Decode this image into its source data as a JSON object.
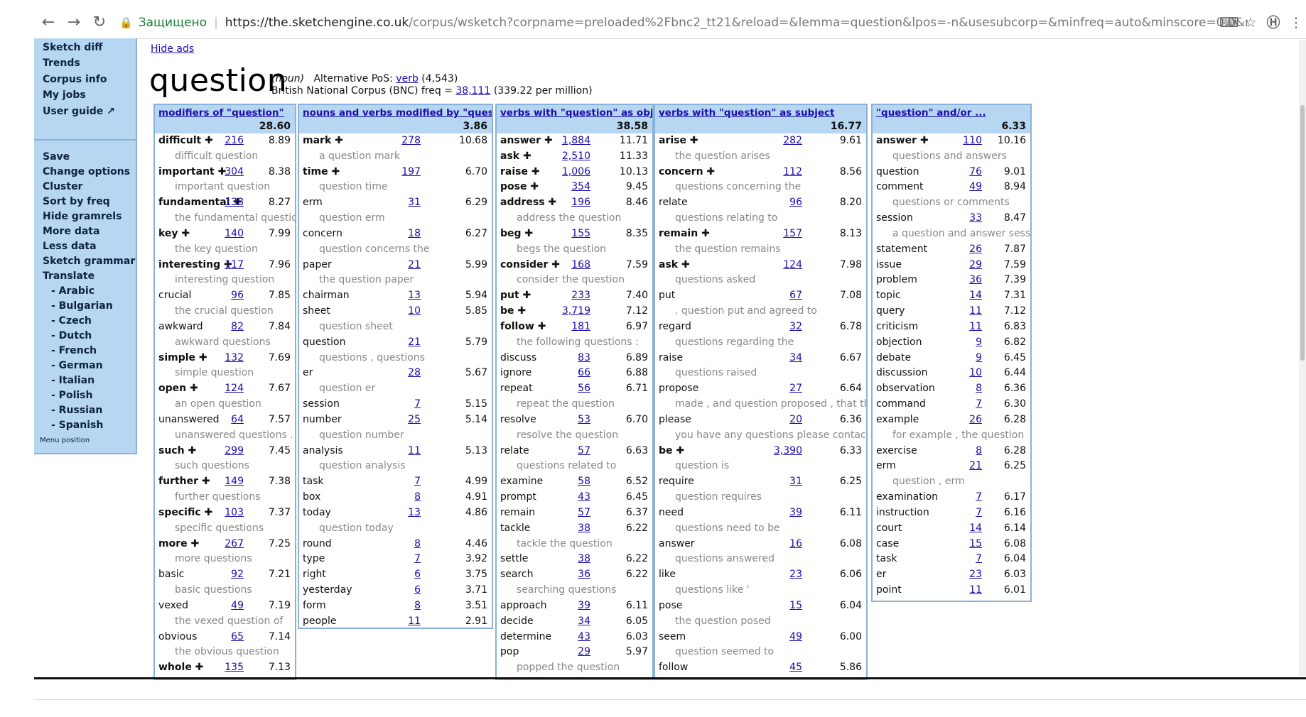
{
  "browser": {
    "secure_label": "Защищено",
    "url_host": "https://the.sketchengine.co.uk",
    "url_rest": "/corpus/wsketch?corpname=preloaded%2Fbnc2_tt21&reload=&lemma=question&lpos=-n&usesubcorp=&minfreq=auto&minscore=0.0&maxitems=25&sort_ws_...",
    "back_glyph": "←",
    "forward_glyph": "→",
    "reload_glyph": "↻",
    "lock_glyph": "🔒",
    "translate_glyph": "⌨",
    "star_glyph": "☆",
    "ext_glyph": "Ⓗ",
    "menu_glyph": "⋮"
  },
  "sidebar": {
    "items": [
      {
        "label": "Sketch diff"
      },
      {
        "label": "Trends"
      },
      {
        "label": "Corpus info"
      },
      {
        "label": "My jobs"
      },
      {
        "label": "User guide ↗"
      },
      {
        "label": "Save"
      },
      {
        "label": "Change options"
      },
      {
        "label": "Cluster"
      },
      {
        "label": "Sort by freq"
      },
      {
        "label": "Hide gramrels"
      },
      {
        "label": "More data"
      },
      {
        "label": "Less data"
      },
      {
        "label": "Sketch grammar"
      },
      {
        "label": "Translate"
      },
      {
        "label": "- Arabic"
      },
      {
        "label": "- Bulgarian"
      },
      {
        "label": "- Czech"
      },
      {
        "label": "- Dutch"
      },
      {
        "label": "- French"
      },
      {
        "label": "- German"
      },
      {
        "label": "- Italian"
      },
      {
        "label": "- Polish"
      },
      {
        "label": "- Russian"
      },
      {
        "label": "- Spanish"
      }
    ],
    "menu_position": "Menu position"
  },
  "main": {
    "hide_ads": "Hide ads",
    "headword": "question",
    "pos": "(noun)",
    "alt_pos_label": "Alternative PoS:",
    "alt_pos_link": "verb",
    "alt_pos_count": "(4,543)",
    "corpus_label": "British National Corpus (BNC) freq =",
    "corpus_freq": "38,111",
    "corpus_per_million": "(339.22 per million)"
  },
  "gramrels": [
    {
      "title": "modifiers of \"question\"",
      "score": "28.60",
      "rows": [
        {
          "w": "difficult",
          "plus": true,
          "f": "216",
          "s": "8.89"
        },
        {
          "ex": "difficult question"
        },
        {
          "w": "important",
          "plus": true,
          "f": "304",
          "s": "8.38"
        },
        {
          "ex": "important question"
        },
        {
          "w": "fundamental",
          "plus": true,
          "f": "138",
          "s": "8.27"
        },
        {
          "ex": "the fundamental question"
        },
        {
          "w": "key",
          "plus": true,
          "f": "140",
          "s": "7.99"
        },
        {
          "ex": "the key question"
        },
        {
          "w": "interesting",
          "plus": true,
          "f": "117",
          "s": "7.96"
        },
        {
          "ex": "interesting question"
        },
        {
          "w": "crucial",
          "f": "96",
          "s": "7.85"
        },
        {
          "ex": "the crucial question"
        },
        {
          "w": "awkward",
          "f": "82",
          "s": "7.84"
        },
        {
          "ex": "awkward questions"
        },
        {
          "w": "simple",
          "plus": true,
          "f": "132",
          "s": "7.69"
        },
        {
          "ex": "simple question"
        },
        {
          "w": "open",
          "plus": true,
          "f": "124",
          "s": "7.67"
        },
        {
          "ex": "an open question"
        },
        {
          "w": "unanswered",
          "f": "64",
          "s": "7.57"
        },
        {
          "ex": "unanswered questions ."
        },
        {
          "w": "such",
          "plus": true,
          "f": "299",
          "s": "7.45"
        },
        {
          "ex": "such questions"
        },
        {
          "w": "further",
          "plus": true,
          "f": "149",
          "s": "7.38"
        },
        {
          "ex": "further questions"
        },
        {
          "w": "specific",
          "plus": true,
          "f": "103",
          "s": "7.37"
        },
        {
          "ex": "specific questions"
        },
        {
          "w": "more",
          "plus": true,
          "f": "267",
          "s": "7.25"
        },
        {
          "ex": "more questions"
        },
        {
          "w": "basic",
          "f": "92",
          "s": "7.21"
        },
        {
          "ex": "basic questions"
        },
        {
          "w": "vexed",
          "f": "49",
          "s": "7.19"
        },
        {
          "ex": "the vexed question of"
        },
        {
          "w": "obvious",
          "f": "65",
          "s": "7.14"
        },
        {
          "ex": "the obvious question"
        },
        {
          "w": "whole",
          "plus": true,
          "f": "135",
          "s": "7.13"
        }
      ]
    },
    {
      "title": "nouns and verbs modified by \"question\"",
      "score": "3.86",
      "rows": [
        {
          "w": "mark",
          "plus": true,
          "f": "278",
          "s": "10.68"
        },
        {
          "ex": "a question mark"
        },
        {
          "w": "time",
          "plus": true,
          "f": "197",
          "s": "6.70"
        },
        {
          "ex": "question time"
        },
        {
          "w": "erm",
          "f": "31",
          "s": "6.29"
        },
        {
          "ex": "question erm"
        },
        {
          "w": "concern",
          "f": "18",
          "s": "6.27"
        },
        {
          "ex": "question concerns the"
        },
        {
          "w": "paper",
          "f": "21",
          "s": "5.99"
        },
        {
          "ex": "the question paper"
        },
        {
          "w": "chairman",
          "f": "13",
          "s": "5.94"
        },
        {
          "w": "sheet",
          "f": "10",
          "s": "5.85"
        },
        {
          "ex": "question sheet"
        },
        {
          "w": "question",
          "f": "21",
          "s": "5.79"
        },
        {
          "ex": "questions , questions"
        },
        {
          "w": "er",
          "f": "28",
          "s": "5.67"
        },
        {
          "ex": "question er"
        },
        {
          "w": "session",
          "f": "7",
          "s": "5.15"
        },
        {
          "w": "number",
          "f": "25",
          "s": "5.14"
        },
        {
          "ex": "question number"
        },
        {
          "w": "analysis",
          "f": "11",
          "s": "5.13"
        },
        {
          "ex": "question analysis"
        },
        {
          "w": "task",
          "f": "7",
          "s": "4.99"
        },
        {
          "w": "box",
          "f": "8",
          "s": "4.91"
        },
        {
          "w": "today",
          "f": "13",
          "s": "4.86"
        },
        {
          "ex": "question today"
        },
        {
          "w": "round",
          "f": "8",
          "s": "4.46"
        },
        {
          "w": "type",
          "f": "7",
          "s": "3.92"
        },
        {
          "w": "right",
          "f": "6",
          "s": "3.75"
        },
        {
          "w": "yesterday",
          "f": "6",
          "s": "3.71"
        },
        {
          "w": "form",
          "f": "8",
          "s": "3.51"
        },
        {
          "w": "people",
          "f": "11",
          "s": "2.91"
        }
      ]
    },
    {
      "title": "verbs with \"question\" as object",
      "score": "38.58",
      "rows": [
        {
          "w": "answer",
          "plus": true,
          "f": "1,884",
          "s": "11.71"
        },
        {
          "w": "ask",
          "plus": true,
          "f": "2,510",
          "s": "11.33"
        },
        {
          "w": "raise",
          "plus": true,
          "f": "1,006",
          "s": "10.13"
        },
        {
          "w": "pose",
          "plus": true,
          "f": "354",
          "s": "9.45"
        },
        {
          "w": "address",
          "plus": true,
          "f": "196",
          "s": "8.46"
        },
        {
          "ex": "address the question"
        },
        {
          "w": "beg",
          "plus": true,
          "f": "155",
          "s": "8.35"
        },
        {
          "ex": "begs the question"
        },
        {
          "w": "consider",
          "plus": true,
          "f": "168",
          "s": "7.59"
        },
        {
          "ex": "consider the question"
        },
        {
          "w": "put",
          "plus": true,
          "f": "233",
          "s": "7.40"
        },
        {
          "w": "be",
          "plus": true,
          "f": "3,719",
          "s": "7.12"
        },
        {
          "w": "follow",
          "plus": true,
          "f": "181",
          "s": "6.97"
        },
        {
          "ex": "the following questions :"
        },
        {
          "w": "discuss",
          "f": "83",
          "s": "6.89"
        },
        {
          "w": "ignore",
          "f": "66",
          "s": "6.88"
        },
        {
          "w": "repeat",
          "f": "56",
          "s": "6.71"
        },
        {
          "ex": "repeat the question"
        },
        {
          "w": "resolve",
          "f": "53",
          "s": "6.70"
        },
        {
          "ex": "resolve the question"
        },
        {
          "w": "relate",
          "f": "57",
          "s": "6.63"
        },
        {
          "ex": "questions related to"
        },
        {
          "w": "examine",
          "f": "58",
          "s": "6.52"
        },
        {
          "w": "prompt",
          "f": "43",
          "s": "6.45"
        },
        {
          "w": "remain",
          "f": "57",
          "s": "6.37"
        },
        {
          "w": "tackle",
          "f": "38",
          "s": "6.22"
        },
        {
          "ex": "tackle the question"
        },
        {
          "w": "settle",
          "f": "38",
          "s": "6.22"
        },
        {
          "w": "search",
          "f": "36",
          "s": "6.22"
        },
        {
          "ex": "searching questions"
        },
        {
          "w": "approach",
          "f": "39",
          "s": "6.11"
        },
        {
          "w": "decide",
          "f": "34",
          "s": "6.05"
        },
        {
          "w": "determine",
          "f": "43",
          "s": "6.03"
        },
        {
          "w": "pop",
          "f": "29",
          "s": "5.97"
        },
        {
          "ex": "popped the question"
        }
      ]
    },
    {
      "title": "verbs with \"question\" as subject",
      "score": "16.77",
      "rows": [
        {
          "w": "arise",
          "plus": true,
          "f": "282",
          "s": "9.61"
        },
        {
          "ex": "the question arises"
        },
        {
          "w": "concern",
          "plus": true,
          "f": "112",
          "s": "8.56"
        },
        {
          "ex": "questions concerning the"
        },
        {
          "w": "relate",
          "f": "96",
          "s": "8.20"
        },
        {
          "ex": "questions relating to"
        },
        {
          "w": "remain",
          "plus": true,
          "f": "157",
          "s": "8.13"
        },
        {
          "ex": "the question remains"
        },
        {
          "w": "ask",
          "plus": true,
          "f": "124",
          "s": "7.98"
        },
        {
          "ex": "questions asked"
        },
        {
          "w": "put",
          "f": "67",
          "s": "7.08"
        },
        {
          "ex": ". question put and agreed to"
        },
        {
          "w": "regard",
          "f": "32",
          "s": "6.78"
        },
        {
          "ex": "questions regarding the"
        },
        {
          "w": "raise",
          "f": "34",
          "s": "6.67"
        },
        {
          "ex": "questions raised"
        },
        {
          "w": "propose",
          "f": "27",
          "s": "6.64"
        },
        {
          "ex": "made , and question proposed , that this"
        },
        {
          "w": "please",
          "f": "20",
          "s": "6.36"
        },
        {
          "ex": "you have any questions please contact : ("
        },
        {
          "w": "be",
          "plus": true,
          "f": "3,390",
          "s": "6.33"
        },
        {
          "ex": "question is"
        },
        {
          "w": "require",
          "f": "31",
          "s": "6.25"
        },
        {
          "ex": "question requires"
        },
        {
          "w": "need",
          "f": "39",
          "s": "6.11"
        },
        {
          "ex": "questions need to be"
        },
        {
          "w": "answer",
          "f": "16",
          "s": "6.08"
        },
        {
          "ex": "questions answered"
        },
        {
          "w": "like",
          "f": "23",
          "s": "6.06"
        },
        {
          "ex": "questions like '"
        },
        {
          "w": "pose",
          "f": "15",
          "s": "6.04"
        },
        {
          "ex": "the question posed"
        },
        {
          "w": "seem",
          "f": "49",
          "s": "6.00"
        },
        {
          "ex": "question seemed to"
        },
        {
          "w": "follow",
          "f": "45",
          "s": "5.86"
        }
      ]
    },
    {
      "title": "\"question\" and/or ...",
      "score": "6.33",
      "rows": [
        {
          "w": "answer",
          "plus": true,
          "f": "110",
          "s": "10.16"
        },
        {
          "ex": "questions and answers"
        },
        {
          "w": "question",
          "f": "76",
          "s": "9.01"
        },
        {
          "w": "comment",
          "f": "49",
          "s": "8.94"
        },
        {
          "ex": "questions or comments"
        },
        {
          "w": "session",
          "f": "33",
          "s": "8.47"
        },
        {
          "ex": "a question and answer session"
        },
        {
          "w": "statement",
          "f": "26",
          "s": "7.87"
        },
        {
          "w": "issue",
          "f": "29",
          "s": "7.59"
        },
        {
          "w": "problem",
          "f": "36",
          "s": "7.39"
        },
        {
          "w": "topic",
          "f": "14",
          "s": "7.31"
        },
        {
          "w": "query",
          "f": "11",
          "s": "7.12"
        },
        {
          "w": "criticism",
          "f": "11",
          "s": "6.83"
        },
        {
          "w": "objection",
          "f": "9",
          "s": "6.82"
        },
        {
          "w": "debate",
          "f": "9",
          "s": "6.45"
        },
        {
          "w": "discussion",
          "f": "10",
          "s": "6.44"
        },
        {
          "w": "observation",
          "f": "8",
          "s": "6.36"
        },
        {
          "w": "command",
          "f": "7",
          "s": "6.30"
        },
        {
          "w": "example",
          "f": "26",
          "s": "6.28"
        },
        {
          "ex": "for example , the question"
        },
        {
          "w": "exercise",
          "f": "8",
          "s": "6.28"
        },
        {
          "w": "erm",
          "f": "21",
          "s": "6.25"
        },
        {
          "ex": "question , erm"
        },
        {
          "w": "examination",
          "f": "7",
          "s": "6.17"
        },
        {
          "w": "instruction",
          "f": "7",
          "s": "6.16"
        },
        {
          "w": "court",
          "f": "14",
          "s": "6.14"
        },
        {
          "w": "case",
          "f": "15",
          "s": "6.08"
        },
        {
          "w": "task",
          "f": "7",
          "s": "6.04"
        },
        {
          "w": "er",
          "f": "23",
          "s": "6.03"
        },
        {
          "w": "point",
          "f": "11",
          "s": "6.01"
        }
      ]
    }
  ]
}
